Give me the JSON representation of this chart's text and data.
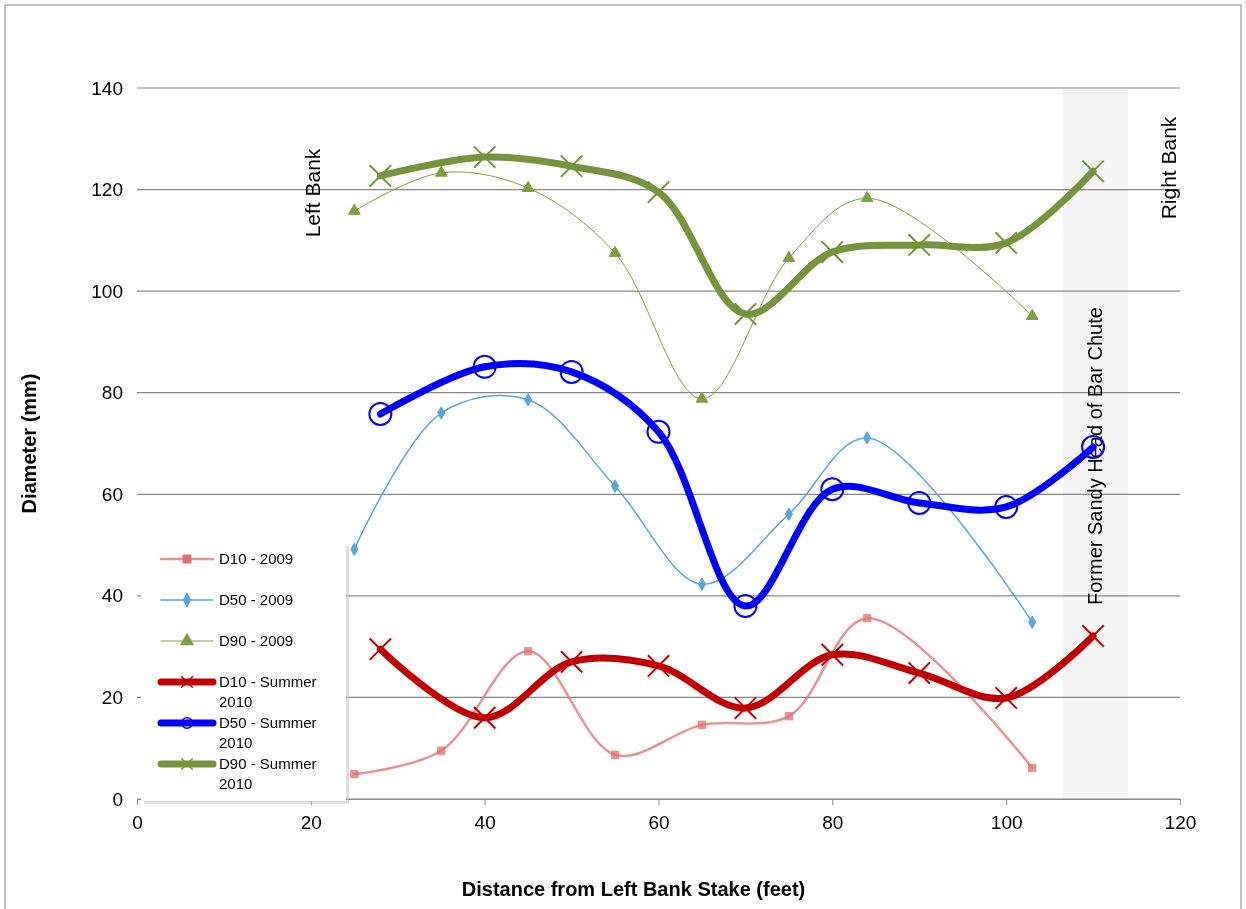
{
  "chart_data": {
    "type": "line",
    "xlabel": "Distance from Left Bank Stake (feet)",
    "ylabel": "Diameter (mm)",
    "xlim": [
      0,
      120
    ],
    "xticks": [
      0,
      20,
      40,
      60,
      80,
      100,
      120
    ],
    "ylim": [
      0,
      140
    ],
    "yticks": [
      0,
      20,
      40,
      60,
      80,
      100,
      120,
      140
    ],
    "grid": "y",
    "legend": "bottom left",
    "bands": [
      {
        "axis": "x",
        "from": 106.5,
        "to": 114,
        "label": "Former Sandy Head of Bar Chute",
        "color": "#e8e8e8"
      }
    ],
    "annotations": [
      "Left Bank",
      "Right Bank"
    ],
    "series": [
      {
        "name": "D10 - 2009",
        "color": "#e07070",
        "marker": "square",
        "x": [
          25,
          35,
          45,
          55,
          65,
          75,
          84,
          103
        ],
        "values": [
          4.9,
          9.5,
          29.1,
          8.7,
          14.6,
          16.3,
          35.6,
          6.1
        ]
      },
      {
        "name": "D50 - 2009",
        "color": "#5aa5dc",
        "marker": "diamond",
        "x": [
          25,
          35,
          45,
          55,
          65,
          75,
          84,
          103
        ],
        "values": [
          49.2,
          76,
          78.6,
          61.6,
          42.3,
          56.1,
          71.1,
          34.8
        ]
      },
      {
        "name": "D90 - 2009",
        "color": "#7f9f40",
        "marker": "triangle",
        "x": [
          25,
          35,
          45,
          55,
          65,
          75,
          84,
          103
        ],
        "values": [
          115.8,
          123.3,
          120.3,
          107.5,
          78.8,
          106.5,
          118.3,
          95.1
        ]
      },
      {
        "name": "D10 - Summer 2010",
        "color": "#c00000",
        "marker": "cross",
        "x": [
          28,
          40,
          50,
          60,
          70,
          80,
          90,
          100,
          110
        ],
        "values": [
          29.5,
          16,
          27,
          26.2,
          17.9,
          28.4,
          24.8,
          19.9,
          32.1
        ]
      },
      {
        "name": "D50 - Summer 2010",
        "color": "#0000ff",
        "marker": "circle",
        "x": [
          28,
          40,
          50,
          60,
          70,
          80,
          90,
          100,
          110
        ],
        "values": [
          75.8,
          85.1,
          84.1,
          72.3,
          38,
          61,
          58.3,
          57.5,
          69.3
        ]
      },
      {
        "name": "D90 - Summer 2010",
        "color": "#77933c",
        "marker": "cross",
        "x": [
          28,
          40,
          50,
          60,
          70,
          80,
          90,
          100,
          110
        ],
        "values": [
          122.7,
          126.4,
          124.6,
          119.5,
          95.5,
          107.7,
          109.1,
          109.5,
          123.6
        ]
      }
    ]
  }
}
